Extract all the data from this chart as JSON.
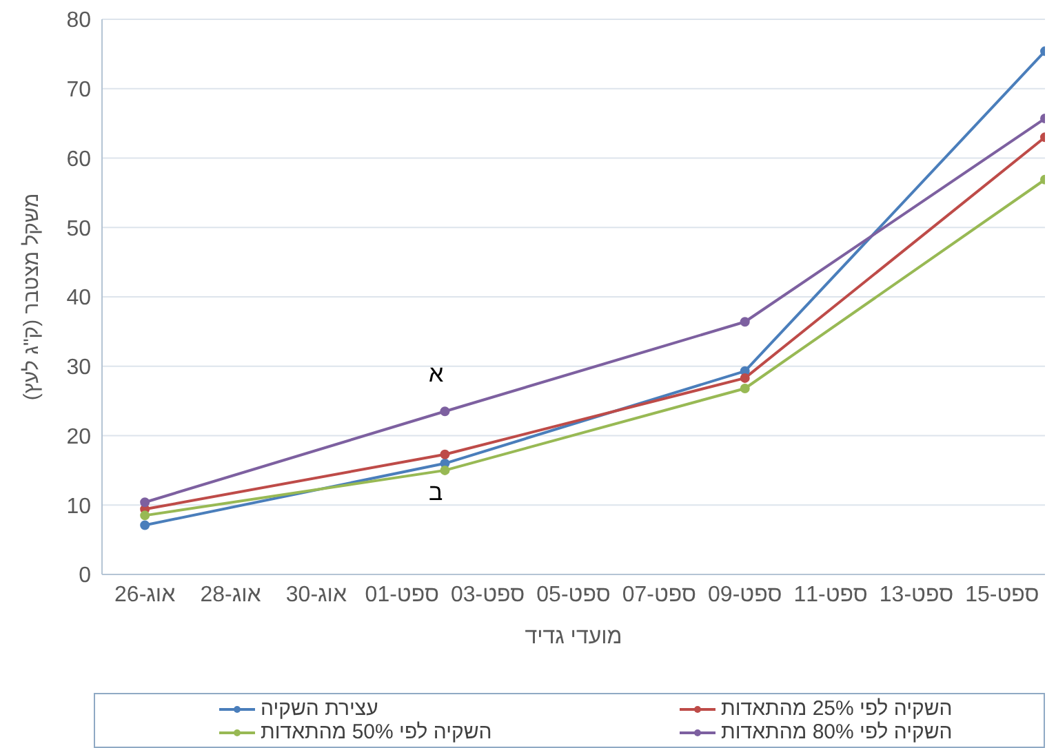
{
  "chart_data": {
    "type": "line",
    "ylabel": "משקל מצטבר (ק\"ג לעץ)",
    "xlabel": "מועדי גדיד",
    "x": [
      "--08-26",
      "--09-02",
      "--09-09",
      "--09-16"
    ],
    "xlim": [
      "--08-25",
      "--09-16"
    ],
    "xticks": [
      {
        "value": "--08-26",
        "label": "26-אוג"
      },
      {
        "value": "--08-28",
        "label": "28-אוג"
      },
      {
        "value": "--08-30",
        "label": "30-אוג"
      },
      {
        "value": "--09-01",
        "label": "01-ספט"
      },
      {
        "value": "--09-03",
        "label": "03-ספט"
      },
      {
        "value": "--09-05",
        "label": "05-ספט"
      },
      {
        "value": "--09-07",
        "label": "07-ספט"
      },
      {
        "value": "--09-09",
        "label": "09-ספט"
      },
      {
        "value": "--09-11",
        "label": "11-ספט"
      },
      {
        "value": "--09-13",
        "label": "13-ספט"
      },
      {
        "value": "--09-15",
        "label": "15-ספט"
      }
    ],
    "ylim": [
      0,
      80
    ],
    "yticks": [
      0,
      10,
      20,
      30,
      40,
      50,
      60,
      70,
      80
    ],
    "grid": "y",
    "legend": "bottom",
    "marker": "circle",
    "line_style": "solid",
    "series": [
      {
        "name": "עצירת השקיה",
        "color": "#4a7ebb",
        "values": [
          7.1,
          16.0,
          29.3,
          75.4
        ]
      },
      {
        "name": "השקיה לפי 25% מהתאדות",
        "color": "#be4b48",
        "values": [
          9.4,
          17.3,
          28.3,
          63.0
        ]
      },
      {
        "name": "השקיה לפי 50% מהתאדות",
        "color": "#98b954",
        "values": [
          8.5,
          15.0,
          26.8,
          56.9
        ]
      },
      {
        "name": "השקיה לפי 80% מהתאדות",
        "color": "#7d60a0",
        "values": [
          10.4,
          23.5,
          36.4,
          65.7
        ]
      }
    ],
    "annotations": [
      "א",
      "ב"
    ]
  }
}
